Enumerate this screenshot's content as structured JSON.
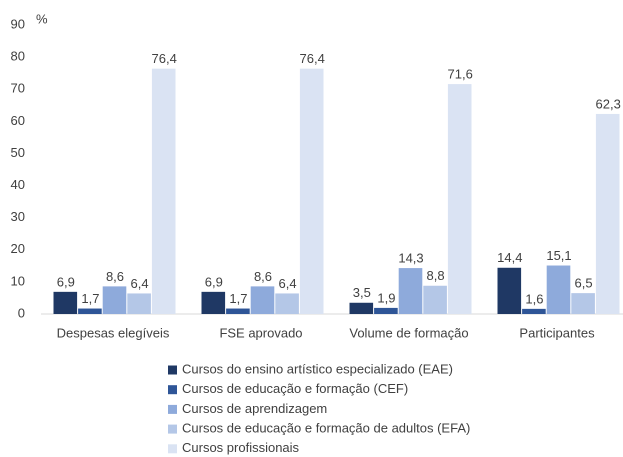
{
  "chart_data": {
    "type": "bar",
    "y_unit": "%",
    "categories": [
      "Despesas elegíveis",
      "FSE aprovado",
      "Volume de formação",
      "Participantes"
    ],
    "series": [
      {
        "name": "Cursos do ensino artístico especializado (EAE)",
        "color": "#1f3864",
        "values": [
          6.9,
          6.9,
          3.5,
          14.4
        ],
        "value_labels": [
          "6,9",
          "6,9",
          "3,5",
          "14,4"
        ]
      },
      {
        "name": "Cursos de educação e formação (CEF)",
        "color": "#2e5597",
        "values": [
          1.7,
          1.7,
          1.9,
          1.6
        ],
        "value_labels": [
          "1,7",
          "1,7",
          "1,9",
          "1,6"
        ]
      },
      {
        "name": "Cursos de aprendizagem",
        "color": "#8eaadb",
        "values": [
          8.6,
          8.6,
          14.3,
          15.1
        ],
        "value_labels": [
          "8,6",
          "8,6",
          "14,3",
          "15,1"
        ]
      },
      {
        "name": "Cursos de educação e formação de adultos (EFA)",
        "color": "#b4c7e7",
        "values": [
          6.4,
          6.4,
          8.8,
          6.5
        ],
        "value_labels": [
          "6,4",
          "6,4",
          "8,8",
          "6,5"
        ]
      },
      {
        "name": "Cursos profissionais",
        "color": "#dae3f3",
        "values": [
          76.4,
          76.4,
          71.6,
          62.3
        ],
        "value_labels": [
          "76,4",
          "76,4",
          "71,6",
          "62,3"
        ]
      }
    ],
    "ylim": [
      0,
      90
    ],
    "yticks": [
      0,
      10,
      20,
      30,
      40,
      50,
      60,
      70,
      80,
      90
    ],
    "grid": false,
    "legend": "bottom"
  }
}
